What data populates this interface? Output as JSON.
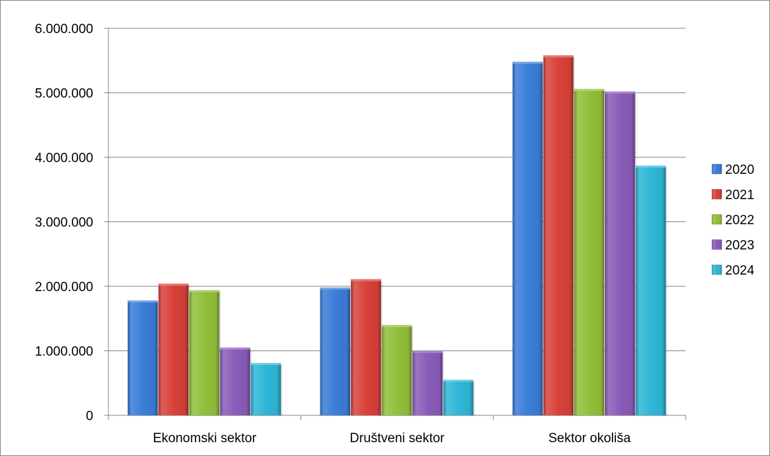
{
  "chart_data": {
    "type": "bar",
    "title": "",
    "xlabel": "",
    "ylabel": "",
    "categories": [
      "Ekonomski sektor",
      "Društveni sektor",
      "Sektor okoliša"
    ],
    "series": [
      {
        "name": "2020",
        "color": "#3B7DD8",
        "values": [
          1780000,
          1980000,
          5480000
        ]
      },
      {
        "name": "2021",
        "color": "#D8413A",
        "values": [
          2040000,
          2110000,
          5580000
        ]
      },
      {
        "name": "2022",
        "color": "#92C03A",
        "values": [
          1940000,
          1400000,
          5060000
        ]
      },
      {
        "name": "2023",
        "color": "#8A5CB8",
        "values": [
          1050000,
          1000000,
          5020000
        ]
      },
      {
        "name": "2024",
        "color": "#2EB7D6",
        "values": [
          810000,
          550000,
          3870000
        ]
      }
    ],
    "ylim": [
      0,
      6000000
    ],
    "yticks": [
      0,
      1000000,
      2000000,
      3000000,
      4000000,
      5000000,
      6000000
    ],
    "ytick_labels": [
      "0",
      "1.000.000",
      "2.000.000",
      "3.000.000",
      "4.000.000",
      "5.000.000",
      "6.000.000"
    ],
    "grid": true,
    "legend_position": "right"
  }
}
